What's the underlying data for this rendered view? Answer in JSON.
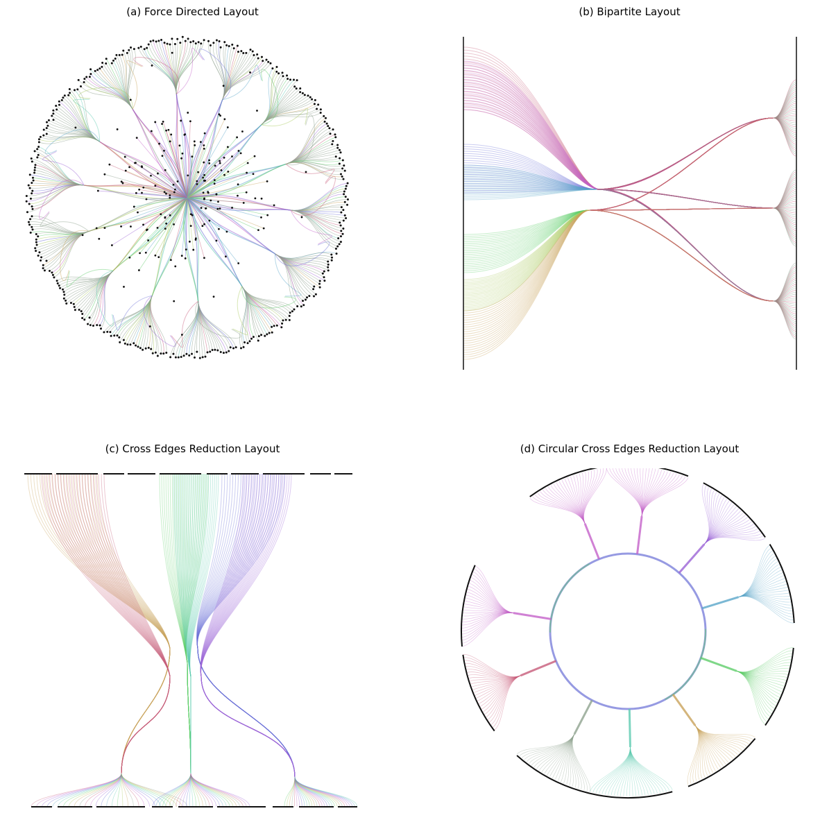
{
  "panels": [
    {
      "title": "(a) Force Directed Layout",
      "kind": "radial-tree"
    },
    {
      "title": "(b) Bipartite Layout",
      "kind": "bipartite"
    },
    {
      "title": "(c) Cross Edges Reduction Layout",
      "kind": "cross-edges"
    },
    {
      "title": "(d) Circular Cross Edges Reduction Layout",
      "kind": "circular-cross-edges"
    }
  ],
  "colors": {
    "node": "#111111",
    "palette": [
      "#c75b79",
      "#c462c9",
      "#9b63d6",
      "#6a6fd6",
      "#5aa6c9",
      "#5ccab0",
      "#5fcd6a",
      "#a9c95d",
      "#c9a35b",
      "#8fa28f"
    ]
  }
}
